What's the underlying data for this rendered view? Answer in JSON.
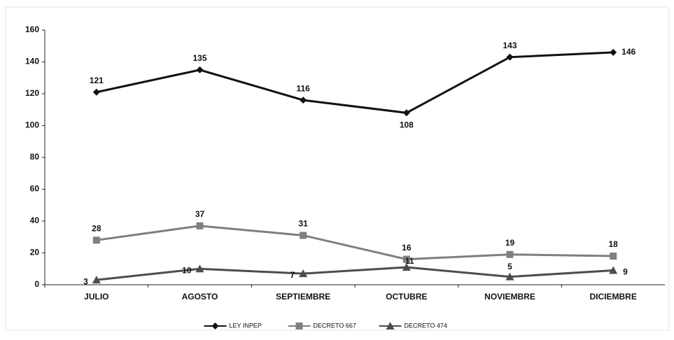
{
  "chart_data": {
    "type": "line",
    "categories": [
      "JULIO",
      "AGOSTO",
      "SEPTIEMBRE",
      "OCTUBRE",
      "NOVIEMBRE",
      "DICIEMBRE"
    ],
    "series": [
      {
        "name": "LEY INPEP",
        "color": "#111111",
        "marker": "diamond",
        "values": [
          121,
          135,
          116,
          108,
          143,
          146
        ]
      },
      {
        "name": "DECRETO 667",
        "color": "#7f7f7f",
        "marker": "square",
        "values": [
          28,
          37,
          31,
          16,
          19,
          18
        ]
      },
      {
        "name": "DECRETO 474",
        "color": "#4d4d4d",
        "marker": "triangle",
        "values": [
          3,
          10,
          7,
          11,
          5,
          9
        ]
      }
    ],
    "ylim": [
      0,
      160
    ],
    "yticks": [
      0,
      20,
      40,
      60,
      80,
      100,
      120,
      140,
      160
    ],
    "grid": false,
    "legend": "bottom"
  }
}
